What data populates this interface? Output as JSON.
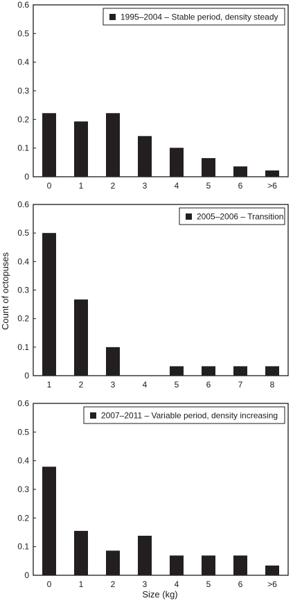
{
  "ylabel": "Count of octopuses",
  "xlabel": "Size (kg)",
  "colors": {
    "bar": "#231f20",
    "frame": "#1a1a1a"
  },
  "chart_data": [
    {
      "type": "bar",
      "legend": "1995–2004 – Stable period, density steady",
      "categories": [
        "0",
        "1",
        "2",
        "3",
        "4",
        "5",
        "6",
        ">6"
      ],
      "values": [
        0.222,
        0.193,
        0.222,
        0.142,
        0.101,
        0.065,
        0.036,
        0.022
      ],
      "ylim": [
        0,
        0.6
      ],
      "yticks": [
        "0",
        "0.1",
        "0.2",
        "0.3",
        "0.4",
        "0.5",
        "0.6"
      ],
      "legend_position": "top-right",
      "grid": false
    },
    {
      "type": "bar",
      "legend": "2005–2006 – Transition",
      "categories": [
        "1",
        "2",
        "3",
        "4",
        "5",
        "6",
        "7",
        "8"
      ],
      "values": [
        0.5,
        0.267,
        0.1,
        0,
        0.033,
        0.033,
        0.033,
        0.033
      ],
      "ylim": [
        0,
        0.6
      ],
      "yticks": [
        "0",
        "0.1",
        "0.2",
        "0.3",
        "0.4",
        "0.5",
        "0.6"
      ],
      "legend_position": "top-right",
      "grid": false
    },
    {
      "type": "bar",
      "legend": "2007–2011 – Variable period, density increasing",
      "categories": [
        "0",
        "1",
        "2",
        "3",
        "4",
        "5",
        "6",
        ">6"
      ],
      "values": [
        0.379,
        0.155,
        0.086,
        0.138,
        0.069,
        0.069,
        0.069,
        0.034
      ],
      "ylim": [
        0,
        0.6
      ],
      "yticks": [
        "0",
        "0.1",
        "0.2",
        "0.3",
        "0.4",
        "0.5",
        "0.6"
      ],
      "legend_position": "top-right",
      "grid": false
    }
  ]
}
